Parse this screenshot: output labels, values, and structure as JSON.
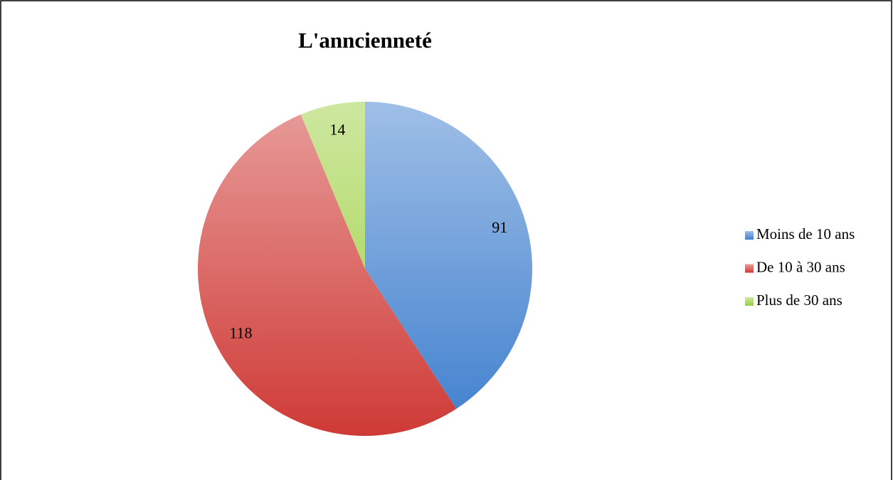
{
  "chart_data": {
    "type": "pie",
    "title": "L'anncienneté",
    "categories": [
      "Moins de 10 ans",
      "De 10 à 30 ans",
      "Plus de 30 ans"
    ],
    "values": [
      91,
      118,
      14
    ],
    "colors": [
      "#3f7fce",
      "#cf3a36",
      "#9ccf3f"
    ],
    "legend": "right"
  }
}
